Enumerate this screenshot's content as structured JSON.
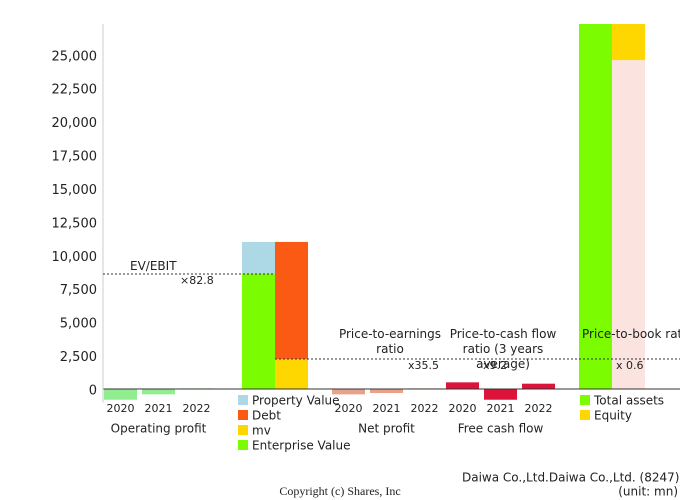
{
  "chart_data": {
    "type": "bar",
    "ylim": [
      -1000,
      27300
    ],
    "yticks": [
      0,
      {
        "value": 2500,
        "label": "2,500"
      },
      {
        "value": 5000,
        "label": "5,000"
      },
      {
        "value": 7500,
        "label": "7,500"
      },
      {
        "value": 10000,
        "label": "10,000"
      },
      {
        "value": 12500,
        "label": "12,500"
      },
      {
        "value": 15000,
        "label": "15,000"
      },
      {
        "value": 17500,
        "label": "17,500"
      },
      {
        "value": 20000,
        "label": "20,000"
      },
      {
        "value": 22500,
        "label": "22,500"
      },
      {
        "value": 25000,
        "label": "25,000"
      }
    ],
    "groups": [
      {
        "name": "Operating profit",
        "categories": [
          "2020",
          "2021",
          "2022"
        ],
        "values": [
          -800,
          -400,
          50
        ],
        "color": "#90ee90"
      },
      {
        "name": "Net profit",
        "categories": [
          "2020",
          "2021",
          "2022"
        ],
        "values": [
          -400,
          -300,
          50
        ],
        "color": "#e9a28a"
      },
      {
        "name": "Free cash flow",
        "categories": [
          "2020",
          "2021",
          "2022"
        ],
        "values": [
          500,
          -800,
          400
        ],
        "color": "#dc143c"
      }
    ],
    "ev_series": [
      {
        "name": "Property Value",
        "color": "#add8e6",
        "value": 2400,
        "stack": "left"
      },
      {
        "name": "Debt",
        "color": "#fa5a14",
        "value": 8750,
        "stack": "right"
      },
      {
        "name": "mv",
        "color": "#ffd700",
        "value": 2250,
        "stack": "right"
      },
      {
        "name": "Enterprise Value",
        "color": "#7cfc00",
        "value": 8600,
        "stack": "left"
      }
    ],
    "balance_series": [
      {
        "name": "Total assets",
        "color": "#7cfc00",
        "value": 28000,
        "stack": "left"
      },
      {
        "name": "Equity",
        "color": "#ffd700",
        "value": 3400,
        "stack": "right"
      },
      {
        "color": "#fbe3e0",
        "value": 24600,
        "stack": "right"
      }
    ],
    "multiples": [
      {
        "label": "EV/EBIT",
        "value": 82.8,
        "value_label": "×82.8"
      },
      {
        "label": "Price-to-earnings ratio",
        "value": 35.5,
        "value_label": "x35.5"
      },
      {
        "label": "Price-to-cash flow ratio (3 years average)",
        "value": 9.2,
        "value_label": "x9.2"
      },
      {
        "label": "Price-to-book ratio",
        "value": 0.6,
        "value_label": "x 0.6"
      }
    ],
    "company": "Daiwa Co.,Ltd.Daiwa Co.,Ltd. (8247)",
    "unit": "(unit: mn)",
    "copyright": "Copyright (c) Shares, Inc"
  }
}
